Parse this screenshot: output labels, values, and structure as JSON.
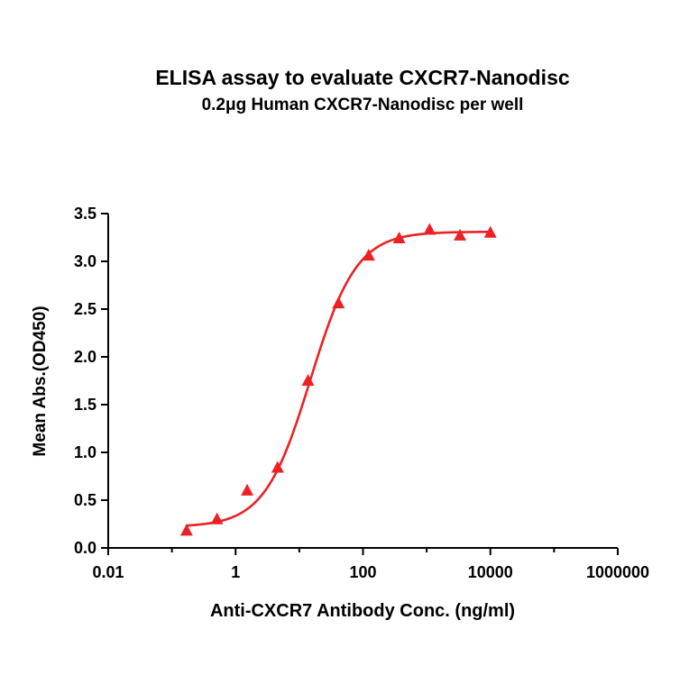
{
  "chart_data": {
    "type": "scatter",
    "title": "ELISA assay to evaluate CXCR7-Nanodisc",
    "subtitle": "0.2μg Human CXCR7-Nanodisc per well",
    "xlabel": "Anti-CXCR7 Antibody Conc. (ng/ml)",
    "ylabel": "Mean Abs.(OD450)",
    "x_scale": "log",
    "xlim": [
      0.01,
      1000000
    ],
    "ylim": [
      0,
      3.5
    ],
    "grid": false,
    "legend": "none",
    "x_ticks": [
      {
        "value": 0.01,
        "label": "0.01"
      },
      {
        "value": 0.1,
        "label": ""
      },
      {
        "value": 1,
        "label": "1"
      },
      {
        "value": 10,
        "label": ""
      },
      {
        "value": 100,
        "label": "100"
      },
      {
        "value": 1000,
        "label": ""
      },
      {
        "value": 10000,
        "label": "10000"
      },
      {
        "value": 100000,
        "label": ""
      },
      {
        "value": 1000000,
        "label": "1000000"
      }
    ],
    "y_ticks": [
      {
        "value": 0.0,
        "label": "0.0"
      },
      {
        "value": 0.5,
        "label": "0.5"
      },
      {
        "value": 1.0,
        "label": "1.0"
      },
      {
        "value": 1.5,
        "label": "1.5"
      },
      {
        "value": 2.0,
        "label": "2.0"
      },
      {
        "value": 2.5,
        "label": "2.5"
      },
      {
        "value": 3.0,
        "label": "3.0"
      },
      {
        "value": 3.5,
        "label": "3.5"
      }
    ],
    "series": [
      {
        "marker": "triangle",
        "color": "#ED2024",
        "x": [
          0.17,
          0.51,
          1.52,
          4.57,
          13.7,
          41.2,
          123,
          370,
          1111,
          3333,
          10000
        ],
        "y": [
          0.18,
          0.3,
          0.6,
          0.84,
          1.75,
          2.56,
          3.06,
          3.24,
          3.33,
          3.27,
          3.3
        ]
      }
    ],
    "fit_curve": {
      "model": "4PL",
      "bottom": 0.22,
      "top": 3.31,
      "ec50": 15,
      "hill": 1.2,
      "x_start": 0.17,
      "x_end": 10000,
      "color": "#ED2024"
    },
    "colors": {
      "axis": "#000000",
      "text": "#000000",
      "background": "#FFFFFF",
      "accent": "#ED2024"
    }
  }
}
